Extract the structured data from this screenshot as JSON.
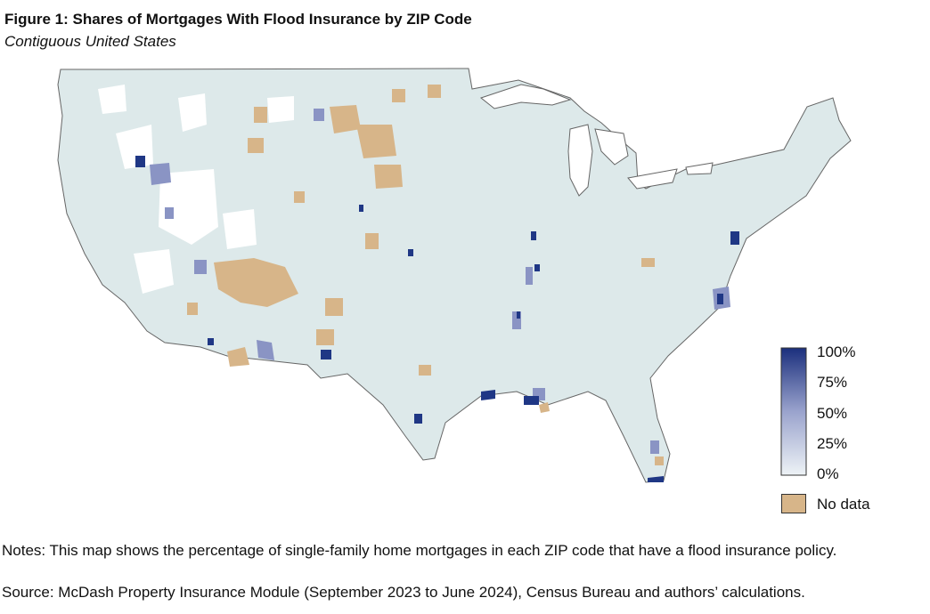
{
  "figure": {
    "title": "Figure 1: Shares of Mortgages With Flood Insurance by ZIP Code",
    "subtitle": "Contiguous United States"
  },
  "colors": {
    "base_fill": "#dde9ea",
    "low": "#d7e3ef",
    "mid": "#8f98c6",
    "high": "#1f3785",
    "no_data": "#d7b589",
    "outline": "#666666"
  },
  "legend": {
    "scale_ticks": [
      "100%",
      "75%",
      "50%",
      "25%",
      "0%"
    ],
    "scale_values": [
      100,
      75,
      50,
      25,
      0
    ],
    "no_data_label": "No data"
  },
  "notes": "Notes: This map shows the percentage of single-family home mortgages in each ZIP code that have a flood insurance policy.",
  "source": "Source: McDash Property Insurance Module (September 2023 to June 2024), Census Bureau and authors’ calculations."
}
